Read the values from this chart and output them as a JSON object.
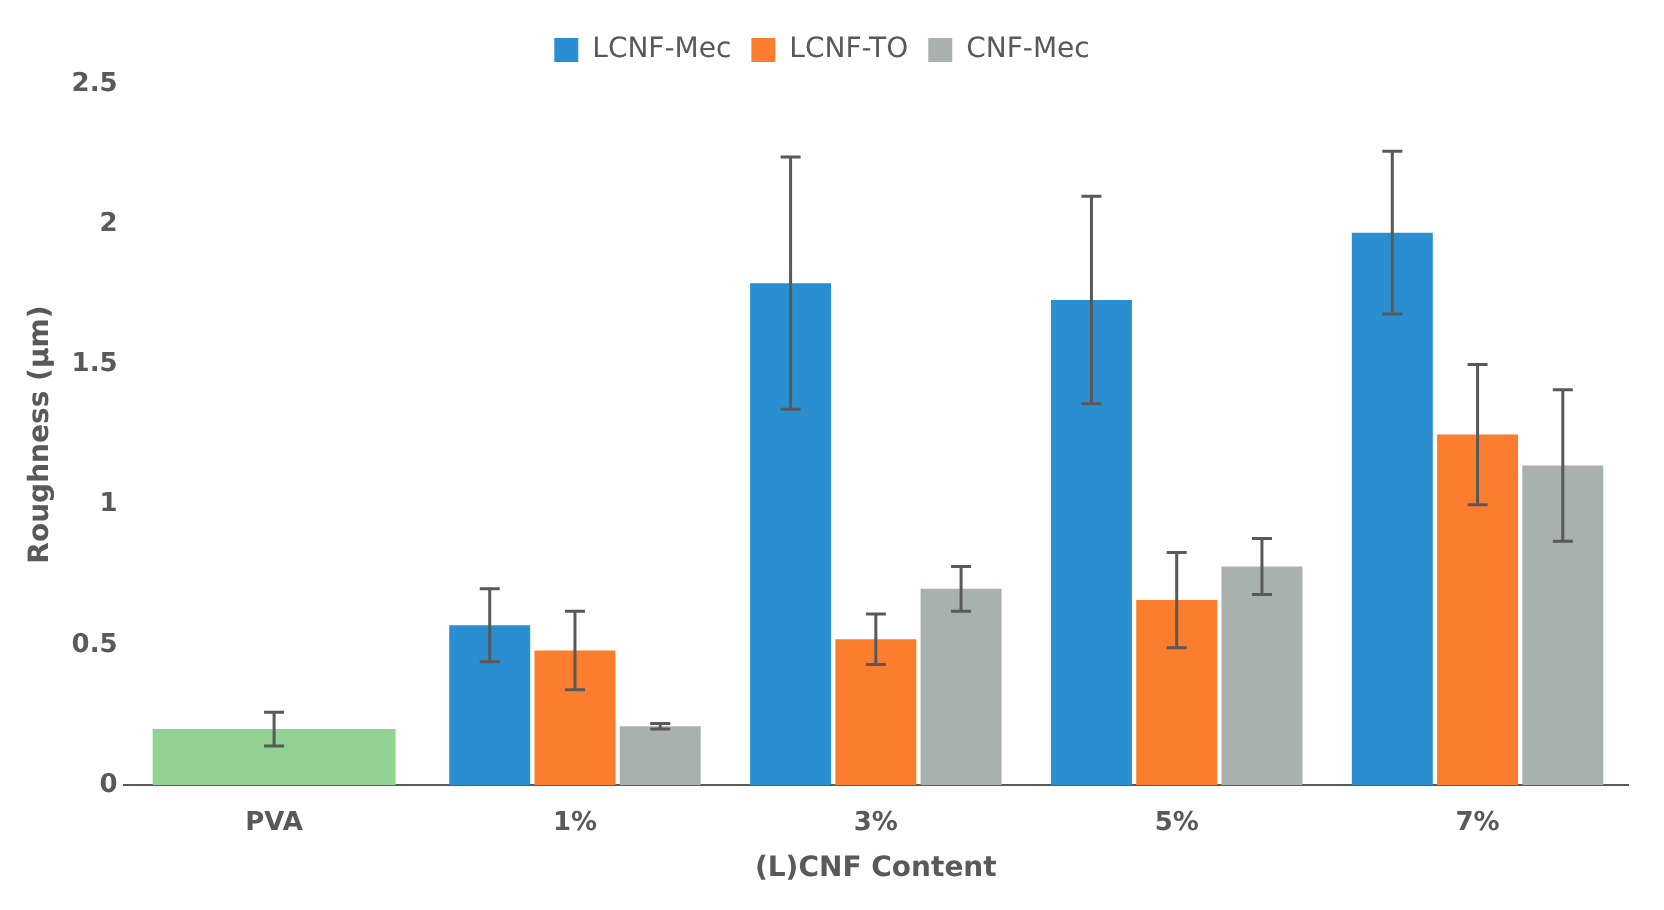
{
  "chart_data": {
    "type": "bar",
    "xlabel": "(L)CNF Content",
    "ylabel": "Roughness (µm)",
    "categories": [
      "PVA",
      "1%",
      "3%",
      "5%",
      "7%"
    ],
    "series": [
      {
        "color": "#92d394",
        "values": [
          0.2,
          null,
          null,
          null,
          null
        ],
        "errors": [
          [
            0.14,
            0.26
          ],
          null,
          null,
          null,
          null
        ]
      },
      {
        "name": "LCNF-Mec",
        "color": "#2a8fd1",
        "values": [
          null,
          0.57,
          1.79,
          1.73,
          1.97
        ],
        "errors": [
          null,
          [
            0.44,
            0.7
          ],
          [
            1.34,
            2.24
          ],
          [
            1.36,
            2.1
          ],
          [
            1.68,
            2.26
          ]
        ]
      },
      {
        "name": "LCNF-TO",
        "color": "#fb7d2d",
        "values": [
          null,
          0.48,
          0.52,
          0.66,
          1.25
        ],
        "errors": [
          null,
          [
            0.34,
            0.62
          ],
          [
            0.43,
            0.61
          ],
          [
            0.49,
            0.83
          ],
          [
            1.0,
            1.5
          ]
        ]
      },
      {
        "name": "CNF-Mec",
        "color": "#a9b1ae",
        "values": [
          null,
          0.21,
          0.7,
          0.78,
          1.14
        ],
        "errors": [
          null,
          [
            0.2,
            0.22
          ],
          [
            0.62,
            0.78
          ],
          [
            0.68,
            0.88
          ],
          [
            0.87,
            1.41
          ]
        ]
      }
    ],
    "ylim": [
      0,
      2.5
    ],
    "yticks": [
      0,
      0.5,
      1,
      1.5,
      2,
      2.5
    ],
    "grid": false,
    "legend": "top"
  }
}
